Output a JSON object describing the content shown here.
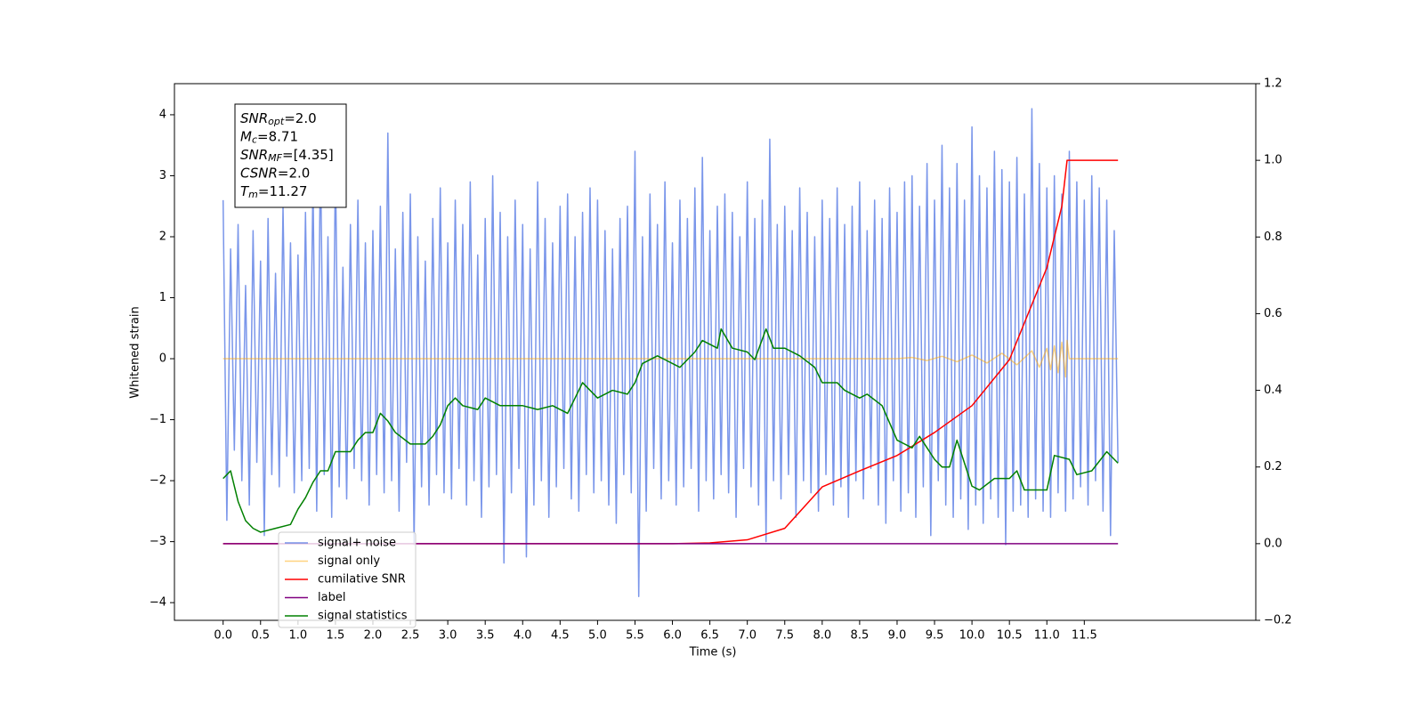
{
  "chart_data": {
    "type": "line",
    "xlabel": "Time (s)",
    "ylabel": "Whitened strain",
    "xlim": [
      -0.65,
      13.79
    ],
    "ylim": [
      -4.29,
      4.51
    ],
    "y2lim": [
      -0.2,
      1.2
    ],
    "xticks": [
      {
        "value": 0,
        "label": "0.0"
      },
      0.5,
      {
        "value": 1,
        "label": "1.0"
      },
      1.5,
      {
        "value": 2,
        "label": "2.0"
      },
      2.5,
      {
        "value": 3,
        "label": "3.0"
      },
      3.5,
      {
        "value": 4,
        "label": "4.0"
      },
      4.5,
      {
        "value": 5,
        "label": "5.0"
      },
      5.5,
      {
        "value": 6,
        "label": "6.0"
      },
      6.5,
      {
        "value": 7,
        "label": "7.0"
      },
      7.5,
      {
        "value": 8,
        "label": "8.0"
      },
      8.5,
      {
        "value": 9,
        "label": "9.0"
      },
      9.5,
      {
        "value": 10,
        "label": "10.0"
      },
      10.5,
      {
        "value": 11,
        "label": "11.0"
      },
      11.5
    ],
    "yticks": [
      {
        "value": -4,
        "label": "−4"
      },
      {
        "value": -3,
        "label": "−3"
      },
      {
        "value": -2,
        "label": "−2"
      },
      {
        "value": -1,
        "label": "−1"
      },
      0,
      1,
      2,
      3,
      4
    ],
    "y2ticks": [
      {
        "value": -0.2,
        "label": "−0.2"
      },
      {
        "value": 0,
        "label": "0.0"
      },
      0.2,
      0.4,
      0.6,
      0.8,
      {
        "value": 1,
        "label": "1.0"
      },
      1.2
    ],
    "legend": "lower left",
    "annotations": [
      {
        "base": "SNR",
        "sub": "opt",
        "rest": "=2.0"
      },
      {
        "base": "M",
        "sub": "c",
        "rest": "=8.71"
      },
      {
        "base": "SNR",
        "sub": "MF",
        "rest": "=[4.35]"
      },
      {
        "base": "CSNR",
        "sub": "",
        "rest": "=2.0"
      },
      {
        "base": "T",
        "sub": "m",
        "rest": "=11.27"
      }
    ],
    "series": [
      {
        "name": "signal+ noise",
        "color": "#4169e1",
        "opacity": 0.7,
        "x": [
          0,
          0.05,
          0.1,
          0.15,
          0.2,
          0.25,
          0.3,
          0.35,
          0.4,
          0.45,
          0.5,
          0.55,
          0.6,
          0.65,
          0.7,
          0.75,
          0.8,
          0.85,
          0.9,
          0.95,
          1,
          1.05,
          1.1,
          1.15,
          1.2,
          1.25,
          1.3,
          1.35,
          1.4,
          1.45,
          1.5,
          1.55,
          1.6,
          1.65,
          1.7,
          1.75,
          1.8,
          1.85,
          1.9,
          1.95,
          2,
          2.05,
          2.1,
          2.15,
          2.2,
          2.25,
          2.3,
          2.35,
          2.4,
          2.45,
          2.5,
          2.55,
          2.6,
          2.65,
          2.7,
          2.75,
          2.8,
          2.85,
          2.9,
          2.95,
          3,
          3.05,
          3.1,
          3.15,
          3.2,
          3.25,
          3.3,
          3.35,
          3.4,
          3.45,
          3.5,
          3.55,
          3.6,
          3.65,
          3.7,
          3.75,
          3.8,
          3.85,
          3.9,
          3.95,
          4,
          4.05,
          4.1,
          4.15,
          4.2,
          4.25,
          4.3,
          4.35,
          4.4,
          4.45,
          4.5,
          4.55,
          4.6,
          4.65,
          4.7,
          4.75,
          4.8,
          4.85,
          4.9,
          4.95,
          5,
          5.05,
          5.1,
          5.15,
          5.2,
          5.25,
          5.3,
          5.35,
          5.4,
          5.45,
          5.5,
          5.55,
          5.6,
          5.65,
          5.7,
          5.75,
          5.8,
          5.85,
          5.9,
          5.95,
          6,
          6.05,
          6.1,
          6.15,
          6.2,
          6.25,
          6.3,
          6.35,
          6.4,
          6.45,
          6.5,
          6.55,
          6.6,
          6.65,
          6.7,
          6.75,
          6.8,
          6.85,
          6.9,
          6.95,
          7,
          7.05,
          7.1,
          7.15,
          7.2,
          7.25,
          7.3,
          7.35,
          7.4,
          7.45,
          7.5,
          7.55,
          7.6,
          7.65,
          7.7,
          7.75,
          7.8,
          7.85,
          7.9,
          7.95,
          8,
          8.05,
          8.1,
          8.15,
          8.2,
          8.25,
          8.3,
          8.35,
          8.4,
          8.45,
          8.5,
          8.55,
          8.6,
          8.65,
          8.7,
          8.75,
          8.8,
          8.85,
          8.9,
          8.95,
          9,
          9.05,
          9.1,
          9.15,
          9.2,
          9.25,
          9.3,
          9.35,
          9.4,
          9.45,
          9.5,
          9.55,
          9.6,
          9.65,
          9.7,
          9.75,
          9.8,
          9.85,
          9.9,
          9.95,
          10,
          10.05,
          10.1,
          10.15,
          10.2,
          10.25,
          10.3,
          10.35,
          10.4,
          10.45,
          10.5,
          10.55,
          10.6,
          10.65,
          10.7,
          10.75,
          10.8,
          10.85,
          10.9,
          10.95,
          11,
          11.05,
          11.1,
          11.15,
          11.2,
          11.25,
          11.3,
          11.35,
          11.4,
          11.45,
          11.5,
          11.55,
          11.6,
          11.65,
          11.7,
          11.75,
          11.8,
          11.85,
          11.9,
          11.95
        ],
        "values": [
          2.6,
          -2.65,
          1.8,
          -1.5,
          2.2,
          -2.0,
          1.2,
          -2.4,
          2.1,
          -1.7,
          1.6,
          -2.9,
          2.3,
          -1.9,
          1.4,
          -2.1,
          2.5,
          -1.6,
          1.9,
          -2.2,
          1.7,
          -2.0,
          2.4,
          -1.8,
          2.9,
          -2.5,
          3.4,
          -1.9,
          2.0,
          -2.6,
          3.2,
          -2.1,
          1.5,
          -2.3,
          2.2,
          -1.8,
          2.6,
          -2.0,
          1.9,
          -2.4,
          2.1,
          -1.9,
          2.5,
          -2.2,
          3.7,
          -2.0,
          1.8,
          -2.5,
          2.4,
          -1.7,
          2.7,
          -3.05,
          2.0,
          -2.1,
          1.6,
          -2.4,
          2.3,
          -1.9,
          2.8,
          -2.2,
          1.9,
          -2.3,
          2.6,
          -1.8,
          2.2,
          -2.4,
          2.9,
          -2.0,
          1.7,
          -2.6,
          2.3,
          -2.1,
          3.0,
          -1.9,
          2.4,
          -3.35,
          2.0,
          -2.2,
          2.6,
          -1.8,
          2.2,
          -3.25,
          1.8,
          -2.4,
          2.9,
          -2.0,
          2.3,
          -2.6,
          1.9,
          -2.1,
          2.5,
          -1.8,
          2.7,
          -2.3,
          2.0,
          -2.5,
          2.4,
          -1.9,
          2.8,
          -2.2,
          2.6,
          -2.0,
          2.1,
          -2.4,
          1.8,
          -2.7,
          2.3,
          -1.9,
          2.5,
          -2.2,
          3.4,
          -3.9,
          2.0,
          -2.5,
          2.7,
          -1.8,
          2.2,
          -2.3,
          2.9,
          -2.0,
          1.9,
          -2.4,
          2.6,
          -2.1,
          2.3,
          -1.8,
          2.8,
          -2.5,
          3.3,
          -2.0,
          2.1,
          -2.3,
          2.5,
          -1.9,
          2.7,
          -2.2,
          2.4,
          -2.6,
          2.0,
          -1.8,
          2.9,
          -2.1,
          2.3,
          -2.4,
          2.6,
          -3.0,
          3.6,
          -2.0,
          2.2,
          -2.3,
          2.5,
          -1.9,
          2.1,
          -2.6,
          2.8,
          -2.0,
          2.4,
          -2.2,
          2.0,
          -2.5,
          2.6,
          -1.9,
          2.3,
          -2.4,
          2.8,
          -2.1,
          2.2,
          -2.6,
          2.5,
          -2.0,
          2.9,
          -2.3,
          2.1,
          -1.8,
          2.6,
          -2.4,
          2.3,
          -2.7,
          2.8,
          -2.0,
          2.4,
          -2.5,
          2.9,
          -2.2,
          3.0,
          -2.6,
          2.5,
          -2.1,
          3.2,
          -2.9,
          2.6,
          -2.0,
          3.5,
          -2.4,
          2.8,
          -2.6,
          3.2,
          -2.3,
          2.6,
          -2.8,
          3.8,
          -2.4,
          3.0,
          -2.7,
          2.8,
          -2.3,
          3.4,
          -2.6,
          3.1,
          -3.05,
          2.9,
          -2.5,
          3.3,
          -2.4,
          2.7,
          -2.6,
          4.1,
          -2.3,
          3.2,
          -2.5,
          2.8,
          -2.6,
          3.0,
          -2.2,
          2.7,
          -2.5,
          3.4,
          -2.3,
          2.9,
          -2.1,
          2.6,
          -2.4,
          3.0,
          -2.0,
          2.8,
          -2.5,
          2.6,
          -2.9,
          2.1,
          -1.7
        ]
      },
      {
        "name": "signal only",
        "color": "#ffa500",
        "opacity": 0.5,
        "x": [
          0,
          9.0,
          9.2,
          9.4,
          9.6,
          9.8,
          10.0,
          10.2,
          10.4,
          10.6,
          10.8,
          10.9,
          11.0,
          11.05,
          11.1,
          11.15,
          11.2,
          11.25,
          11.27,
          11.3,
          11.95
        ],
        "values": [
          0,
          0,
          0.02,
          -0.03,
          0.04,
          -0.05,
          0.06,
          -0.07,
          0.09,
          -0.1,
          0.13,
          -0.14,
          0.17,
          -0.18,
          0.21,
          -0.23,
          0.27,
          -0.3,
          0.3,
          0,
          0
        ]
      },
      {
        "name": "cumilative SNR",
        "color": "#ff0000",
        "axis": "y2",
        "x": [
          0,
          6.0,
          6.5,
          7.0,
          7.5,
          8.0,
          8.5,
          9.0,
          9.5,
          10.0,
          10.5,
          11.0,
          11.2,
          11.27,
          11.95
        ],
        "values": [
          0,
          0,
          0.002,
          0.01,
          0.04,
          0.148,
          0.19,
          0.23,
          0.29,
          0.36,
          0.48,
          0.72,
          0.88,
          1.0,
          1.0
        ]
      },
      {
        "name": "label",
        "color": "#800080",
        "axis": "y2",
        "x": [
          0,
          11.95
        ],
        "values": [
          0,
          0
        ]
      },
      {
        "name": "signal statistics",
        "color": "#008000",
        "axis": "y2",
        "x": [
          0,
          0.1,
          0.2,
          0.3,
          0.4,
          0.5,
          0.7,
          0.9,
          1.0,
          1.1,
          1.2,
          1.3,
          1.4,
          1.5,
          1.7,
          1.8,
          1.9,
          2.0,
          2.1,
          2.2,
          2.3,
          2.5,
          2.7,
          2.8,
          2.9,
          3.0,
          3.1,
          3.2,
          3.4,
          3.5,
          3.7,
          4.0,
          4.2,
          4.4,
          4.6,
          4.8,
          5.0,
          5.2,
          5.4,
          5.5,
          5.6,
          5.8,
          5.9,
          6.1,
          6.3,
          6.4,
          6.6,
          6.65,
          6.8,
          7.0,
          7.1,
          7.25,
          7.35,
          7.5,
          7.7,
          7.9,
          8.0,
          8.2,
          8.3,
          8.5,
          8.6,
          8.8,
          9.0,
          9.1,
          9.2,
          9.3,
          9.4,
          9.5,
          9.6,
          9.7,
          9.8,
          9.9,
          10.0,
          10.1,
          10.3,
          10.5,
          10.6,
          10.7,
          10.9,
          11.0,
          11.1,
          11.3,
          11.4,
          11.6,
          11.8,
          11.95
        ],
        "values": [
          0.17,
          0.19,
          0.11,
          0.06,
          0.04,
          0.03,
          0.04,
          0.05,
          0.09,
          0.12,
          0.16,
          0.19,
          0.19,
          0.24,
          0.24,
          0.27,
          0.29,
          0.29,
          0.34,
          0.32,
          0.29,
          0.26,
          0.26,
          0.28,
          0.31,
          0.36,
          0.38,
          0.36,
          0.35,
          0.38,
          0.36,
          0.36,
          0.35,
          0.36,
          0.34,
          0.42,
          0.38,
          0.4,
          0.39,
          0.42,
          0.47,
          0.49,
          0.48,
          0.46,
          0.5,
          0.53,
          0.51,
          0.56,
          0.51,
          0.5,
          0.48,
          0.56,
          0.51,
          0.51,
          0.49,
          0.46,
          0.42,
          0.42,
          0.4,
          0.38,
          0.39,
          0.36,
          0.27,
          0.26,
          0.25,
          0.28,
          0.25,
          0.22,
          0.2,
          0.2,
          0.27,
          0.21,
          0.15,
          0.14,
          0.17,
          0.17,
          0.19,
          0.14,
          0.14,
          0.14,
          0.23,
          0.22,
          0.18,
          0.19,
          0.24,
          0.21
        ]
      }
    ]
  }
}
